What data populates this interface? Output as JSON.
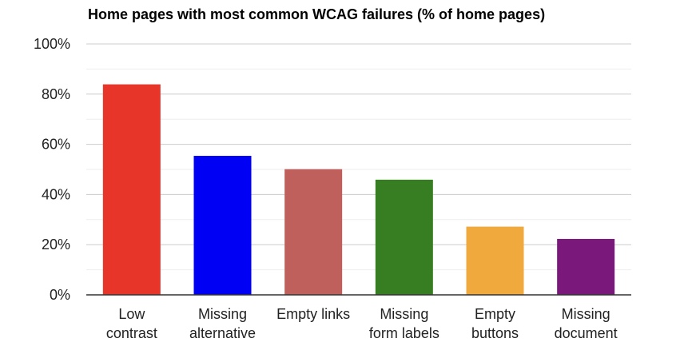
{
  "chart_data": {
    "type": "bar",
    "title": "Home pages with most common WCAG failures (% of home pages)",
    "xlabel": "",
    "ylabel": "",
    "ylim": [
      0,
      100
    ],
    "y_ticks": [
      0,
      20,
      40,
      60,
      80,
      100
    ],
    "y_tick_labels": [
      "0%",
      "20%",
      "40%",
      "60%",
      "80%",
      "100%"
    ],
    "minor_gridlines": true,
    "legend": "none",
    "categories": [
      [
        "Low",
        "contrast"
      ],
      [
        "Missing",
        "alternative"
      ],
      [
        "Empty links"
      ],
      [
        "Missing",
        "form labels"
      ],
      [
        "Empty",
        "buttons"
      ],
      [
        "Missing",
        "document"
      ]
    ],
    "values": [
      83.9,
      55.4,
      50.1,
      45.9,
      27.2,
      22.3
    ],
    "colors": [
      "#e8352a",
      "#0000f5",
      "#c0605c",
      "#377d22",
      "#f0a93c",
      "#7a187c"
    ]
  }
}
